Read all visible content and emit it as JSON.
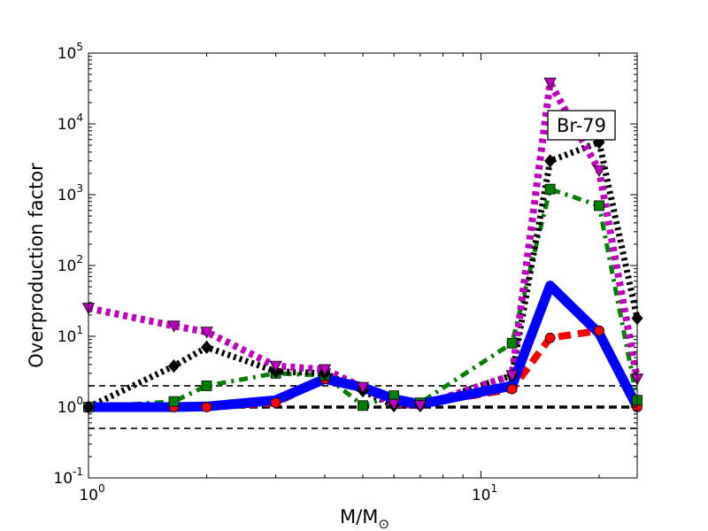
{
  "chart_data": {
    "type": "line",
    "xscale": "log",
    "yscale": "log",
    "xlim": [
      1,
      25
    ],
    "ylim": [
      0.1,
      100000
    ],
    "xlabel": "M/M",
    "xlabel_sub": "⊙",
    "ylabel": "Overproduction factor",
    "annotation": "Br-79",
    "x_ticks": [
      {
        "base": "10",
        "exp": "0",
        "value": 1
      },
      {
        "base": "10",
        "exp": "1",
        "value": 10
      }
    ],
    "y_ticks": [
      {
        "base": "10",
        "exp": "-1",
        "value": 0.1
      },
      {
        "base": "10",
        "exp": "0",
        "value": 1
      },
      {
        "base": "10",
        "exp": "1",
        "value": 10
      },
      {
        "base": "10",
        "exp": "2",
        "value": 100
      },
      {
        "base": "10",
        "exp": "3",
        "value": 1000
      },
      {
        "base": "10",
        "exp": "4",
        "value": 10000
      },
      {
        "base": "10",
        "exp": "5",
        "value": 100000
      }
    ],
    "reference_lines": [
      {
        "y": 2,
        "style": "thin-dashed",
        "color": "#000000"
      },
      {
        "y": 1,
        "style": "thick-dashed",
        "color": "#000000"
      },
      {
        "y": 0.5,
        "style": "thin-dashed",
        "color": "#000000"
      }
    ],
    "series": [
      {
        "color": "#ff0000",
        "line": "dashed",
        "marker": "circle",
        "points": [
          [
            1.0,
            1.0
          ],
          [
            1.65,
            1.0
          ],
          [
            2.0,
            1.0
          ],
          [
            3.0,
            1.15
          ],
          [
            4.0,
            2.5
          ],
          [
            5.0,
            1.8
          ],
          [
            6.0,
            1.25
          ],
          [
            7.0,
            1.1
          ],
          [
            12.0,
            1.8
          ],
          [
            15.0,
            9.5
          ],
          [
            20.0,
            12.0
          ],
          [
            25.0,
            1.0
          ]
        ]
      },
      {
        "color": "#0000ff",
        "line": "solid",
        "marker": "none",
        "points": [
          [
            1.0,
            1.0
          ],
          [
            1.65,
            1.0
          ],
          [
            2.0,
            1.02
          ],
          [
            3.0,
            1.25
          ],
          [
            4.0,
            2.5
          ],
          [
            5.0,
            1.9
          ],
          [
            6.0,
            1.3
          ],
          [
            7.0,
            1.1
          ],
          [
            12.0,
            2.0
          ],
          [
            15.0,
            52.0
          ],
          [
            20.0,
            11.0
          ],
          [
            25.0,
            1.0
          ]
        ]
      },
      {
        "color": "#008000",
        "line": "dashdot",
        "marker": "square",
        "points": [
          [
            1.0,
            1.0
          ],
          [
            1.65,
            1.2
          ],
          [
            2.0,
            2.0
          ],
          [
            3.0,
            3.0
          ],
          [
            4.0,
            2.8
          ],
          [
            5.0,
            1.05
          ],
          [
            6.0,
            1.45
          ],
          [
            7.0,
            1.15
          ],
          [
            12.0,
            8.0
          ],
          [
            15.0,
            1200.0
          ],
          [
            20.0,
            700.0
          ],
          [
            25.0,
            1.25
          ]
        ]
      },
      {
        "color": "#000000",
        "line": "dotted",
        "marker": "diamond",
        "points": [
          [
            1.0,
            1.0
          ],
          [
            1.65,
            3.8
          ],
          [
            2.0,
            7.0
          ],
          [
            3.0,
            3.2
          ],
          [
            4.0,
            3.0
          ],
          [
            5.0,
            1.7
          ],
          [
            6.0,
            1.05
          ],
          [
            7.0,
            1.05
          ],
          [
            12.0,
            2.8
          ],
          [
            15.0,
            3000.0
          ],
          [
            20.0,
            5500.0
          ],
          [
            25.0,
            18.0
          ]
        ]
      },
      {
        "color": "#bf00bf",
        "line": "dotted",
        "marker": "triangle-down",
        "points": [
          [
            1.0,
            25.0
          ],
          [
            1.65,
            14.0
          ],
          [
            2.0,
            11.5
          ],
          [
            3.0,
            3.8
          ],
          [
            4.0,
            3.4
          ],
          [
            5.0,
            1.9
          ],
          [
            6.0,
            1.1
          ],
          [
            7.0,
            1.05
          ],
          [
            12.0,
            2.8
          ],
          [
            15.0,
            38000.0
          ],
          [
            20.0,
            2200.0
          ],
          [
            25.0,
            2.5
          ]
        ]
      }
    ]
  }
}
